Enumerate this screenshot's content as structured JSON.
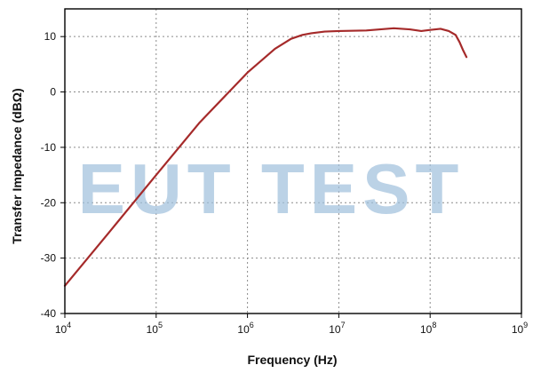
{
  "chart_data": {
    "type": "line",
    "title": "",
    "xlabel": "Frequency (Hz)",
    "ylabel": "Transfer Impedance (dBΩ)",
    "x_scale": "log",
    "xlim": [
      10000,
      1000000000
    ],
    "ylim": [
      -40,
      15
    ],
    "x_ticks": [
      10000,
      100000,
      1000000,
      10000000,
      100000000,
      1000000000
    ],
    "x_tick_labels": [
      {
        "base": "10",
        "exp": "4"
      },
      {
        "base": "10",
        "exp": "5"
      },
      {
        "base": "10",
        "exp": "6"
      },
      {
        "base": "10",
        "exp": "7"
      },
      {
        "base": "10",
        "exp": "8"
      },
      {
        "base": "10",
        "exp": "9"
      }
    ],
    "y_ticks": [
      10,
      0,
      -10,
      -20,
      -30,
      -40
    ],
    "y_tick_labels": [
      "10",
      "0",
      "-10",
      "-20",
      "-30",
      "-40"
    ],
    "grid": true,
    "series": [
      {
        "color": "#a52a2a",
        "points": [
          [
            10000,
            -35
          ],
          [
            30000,
            -25.5
          ],
          [
            100000,
            -15
          ],
          [
            300000,
            -5.5
          ],
          [
            1000000,
            3.5
          ],
          [
            2000000,
            7.8
          ],
          [
            3000000,
            9.6
          ],
          [
            4000000,
            10.3
          ],
          [
            5000000,
            10.6
          ],
          [
            7000000,
            10.9
          ],
          [
            10000000,
            11.0
          ],
          [
            20000000,
            11.1
          ],
          [
            40000000,
            11.5
          ],
          [
            60000000,
            11.3
          ],
          [
            80000000,
            11.0
          ],
          [
            100000000,
            11.2
          ],
          [
            130000000,
            11.4
          ],
          [
            160000000,
            11.0
          ],
          [
            190000000,
            10.3
          ],
          [
            210000000,
            9.0
          ],
          [
            230000000,
            7.5
          ],
          [
            250000000,
            6.3
          ]
        ]
      }
    ]
  },
  "watermark": {
    "text": "EUT TEST"
  }
}
